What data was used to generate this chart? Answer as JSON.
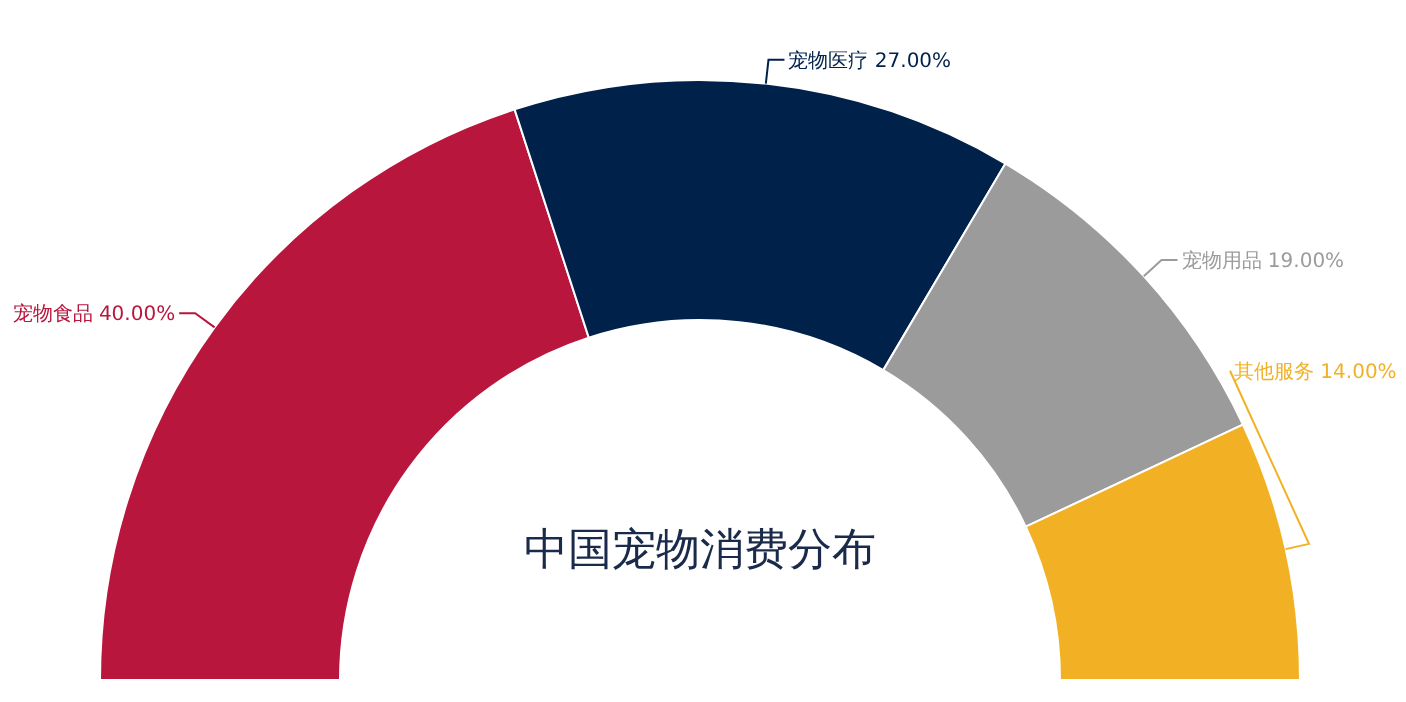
{
  "chart_data": {
    "type": "donut",
    "title": "中国宠物消费分布",
    "categories": [
      "宠物食品",
      "宠物医疗",
      "宠物用品",
      "其他服务"
    ],
    "values": [
      40,
      27,
      19,
      14
    ],
    "value_labels": [
      "40.00%",
      "27.00%",
      "19.00%",
      "14.00%"
    ],
    "colors": [
      "#b8163c",
      "#00214a",
      "#9b9b9b",
      "#f2b124"
    ]
  }
}
